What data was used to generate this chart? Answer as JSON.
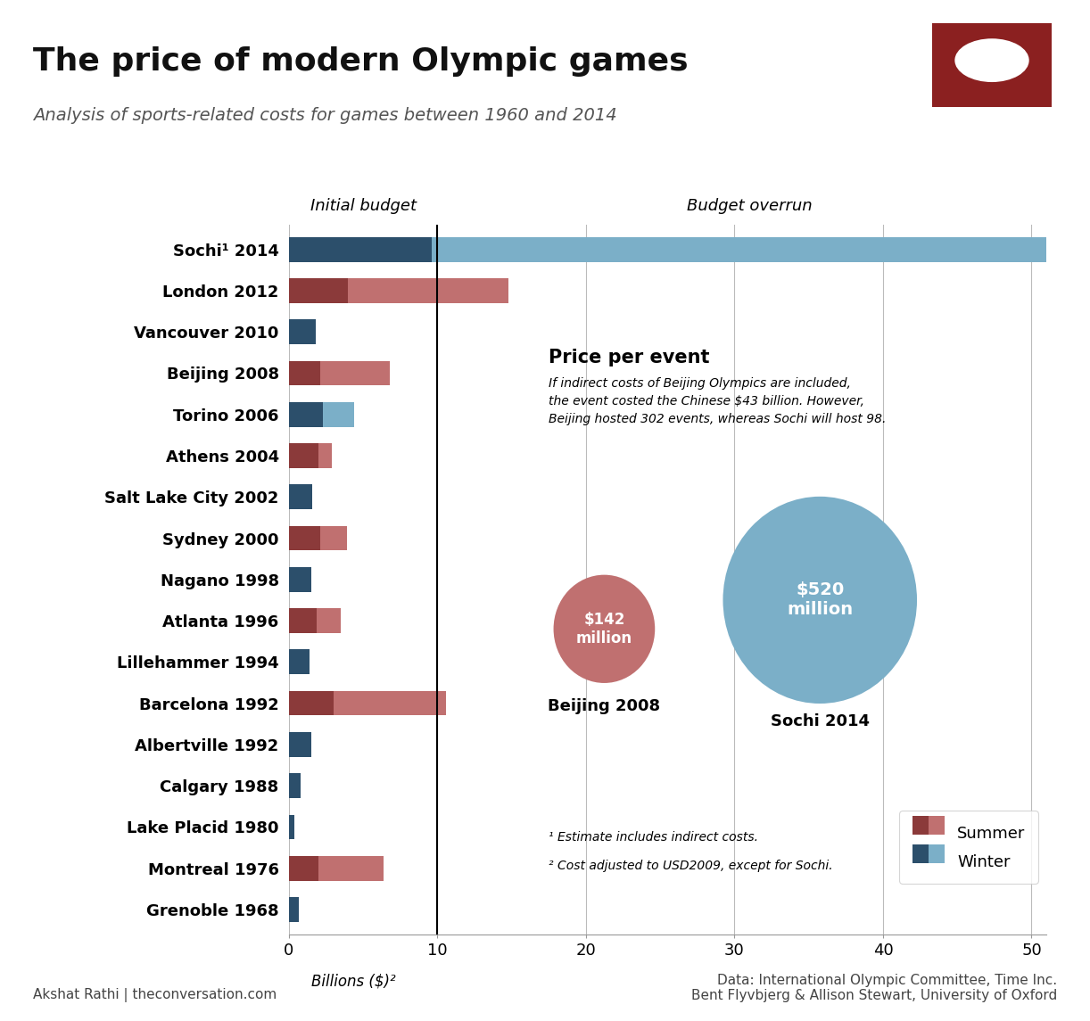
{
  "title": "The price of modern Olympic games",
  "subtitle": "Analysis of sports-related costs for games between 1960 and 2014",
  "xlabel": "Billions ($)²",
  "categories": [
    "Sochi¹ 2014",
    "London 2012",
    "Vancouver 2010",
    "Beijing 2008",
    "Torino 2006",
    "Athens 2004",
    "Salt Lake City 2002",
    "Sydney 2000",
    "Nagano 1998",
    "Atlanta 1996",
    "Lillehammer 1994",
    "Barcelona 1992",
    "Albertville 1992",
    "Calgary 1988",
    "Lake Placid 1980",
    "Montreal 1976",
    "Grenoble 1968"
  ],
  "type": [
    "winter",
    "summer",
    "winter",
    "summer",
    "winter",
    "summer",
    "winter",
    "summer",
    "winter",
    "summer",
    "winter",
    "summer",
    "winter",
    "winter",
    "winter",
    "summer",
    "winter"
  ],
  "initial_budget": [
    9.6,
    4.0,
    1.8,
    2.1,
    2.3,
    2.0,
    1.6,
    2.1,
    1.5,
    1.9,
    1.4,
    3.0,
    1.5,
    0.8,
    0.4,
    2.0,
    0.7
  ],
  "total_cost": [
    51.0,
    14.8,
    1.8,
    6.8,
    4.4,
    2.9,
    1.6,
    3.9,
    1.5,
    3.5,
    1.4,
    10.6,
    1.5,
    0.8,
    0.4,
    6.4,
    0.7
  ],
  "summer_initial_color": "#8B3A3A",
  "summer_overrun_color": "#C07070",
  "winter_initial_color": "#2C4F6B",
  "winter_overrun_color": "#7BAFC8",
  "bg_color": "#FFFFFF",
  "grid_color": "#BBBBBB",
  "beijing_circle_color": "#C07070",
  "sochi_circle_color": "#7BAFC8",
  "beijing_price": "$142\nmillion",
  "sochi_price": "$520\nmillion",
  "price_per_event_text": "Price per event",
  "price_per_event_note": "If indirect costs of Beijing Olympics are included,\nthe event costed the Chinese $43 billion. However,\nBeijing hosted 302 events, whereas Sochi will host 98.",
  "footer_left": "Akshat Rathi | theconversation.com",
  "footer_right": "Data: International Olympic Committee, Time Inc.\nBent Flyvbjerg & Allison Stewart, University of Oxford",
  "footnote1": "¹ Estimate includes indirect costs.",
  "footnote2": "² Cost adjusted to USD2009, except for Sochi.",
  "initial_budget_label": "Initial budget",
  "budget_overrun_label": "Budget overrun",
  "summer_legend": "Summer",
  "winter_legend": "Winter",
  "xlim": [
    0,
    51
  ],
  "xticks": [
    0,
    10,
    20,
    30,
    40,
    50
  ],
  "bar_height": 0.6,
  "logo_color": "#8B2020"
}
